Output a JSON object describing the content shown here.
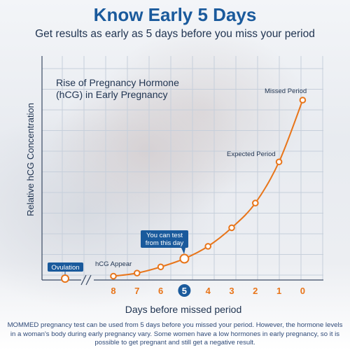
{
  "header": {
    "title": "Know Early 5 Days",
    "subtitle": "Get results as early as 5 days before you miss your period"
  },
  "chart_data": {
    "type": "line",
    "title_lines": [
      "Rise of Pregnancy Hormone",
      "(hCG) in Early Pregnancy"
    ],
    "xlabel": "Days before missed period",
    "ylabel": "Relative hCG Concentration",
    "x_ticks": [
      "8",
      "7",
      "6",
      "5",
      "4",
      "3",
      "2",
      "1",
      "0"
    ],
    "highlight_tick": "5",
    "grid": true,
    "series": [
      {
        "points": [
          {
            "x": "8",
            "y": 0.5
          },
          {
            "x": "7",
            "y": 2
          },
          {
            "x": "6",
            "y": 5
          },
          {
            "x": "5",
            "y": 9
          },
          {
            "x": "4",
            "y": 15
          },
          {
            "x": "3",
            "y": 24
          },
          {
            "x": "2",
            "y": 36
          },
          {
            "x": "1",
            "y": 56
          },
          {
            "x": "0",
            "y": 86
          }
        ]
      }
    ],
    "ovulation_label": "Ovulation",
    "annotations": [
      {
        "text": "hCG Appear",
        "at": "8"
      },
      {
        "text": "Expected Period",
        "at": "1"
      },
      {
        "text": "Missed Period",
        "at": "0"
      }
    ],
    "callout_lines": [
      "You can test",
      "from this day"
    ],
    "colors": {
      "line": "#e8751a",
      "callout": "#1a5a9c",
      "grid": "#c6cfdb",
      "axis": "#3a4a63"
    }
  },
  "footnote": "MOMMED pregnancy test can be used from 5 days before you missed your period. However,  the hormone levels in a woman's body during early pregnancy vary. Some women have a low hormones in early pregnancy, so it is possible to get pregnant and still get a negative result."
}
